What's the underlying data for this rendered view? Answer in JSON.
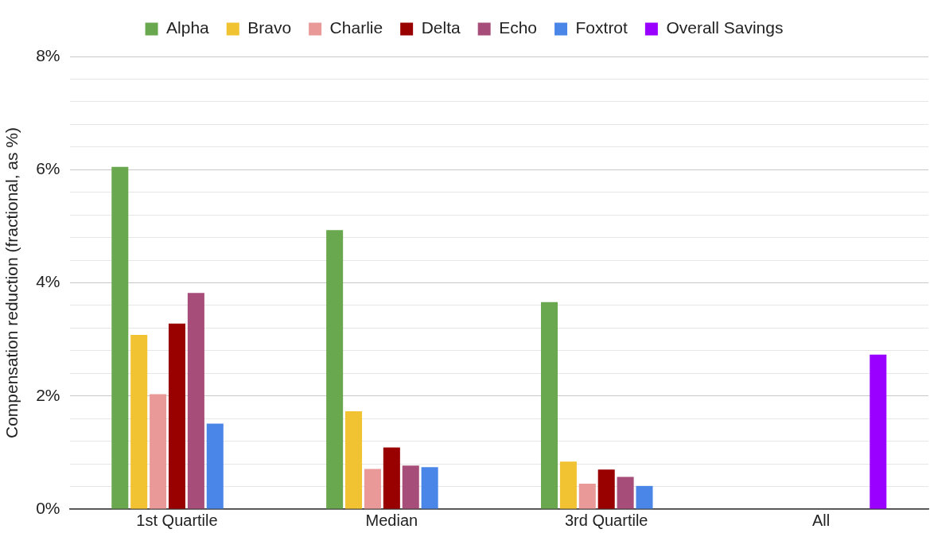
{
  "chart_data": {
    "type": "bar",
    "ylabel": "Compensation reduction (fractional, as %)",
    "categories": [
      "1st Quartile",
      "Median",
      "3rd Quartile",
      "All"
    ],
    "series": [
      {
        "name": "Alpha",
        "color": "#6aa84f",
        "values": [
          6.05,
          4.93,
          3.66,
          null
        ]
      },
      {
        "name": "Bravo",
        "color": "#f1c232",
        "values": [
          3.08,
          1.73,
          0.84,
          null
        ]
      },
      {
        "name": "Charlie",
        "color": "#ea9999",
        "values": [
          2.03,
          0.71,
          0.45,
          null
        ]
      },
      {
        "name": "Delta",
        "color": "#990000",
        "values": [
          3.28,
          1.09,
          0.7,
          null
        ]
      },
      {
        "name": "Echo",
        "color": "#a64d79",
        "values": [
          3.82,
          0.77,
          0.57,
          null
        ]
      },
      {
        "name": "Foxtrot",
        "color": "#4a86e8",
        "values": [
          1.51,
          0.74,
          0.41,
          null
        ]
      },
      {
        "name": "Overall Savings",
        "color": "#9900ff",
        "values": [
          null,
          null,
          null,
          2.73
        ]
      }
    ],
    "ylim": [
      0,
      8
    ],
    "yticks": [
      {
        "value": 0,
        "label": "0%"
      },
      {
        "value": 0.4,
        "label": null
      },
      {
        "value": 0.8,
        "label": null
      },
      {
        "value": 1.2,
        "label": null
      },
      {
        "value": 1.6,
        "label": null
      },
      {
        "value": 2,
        "label": "2%"
      },
      {
        "value": 2.4,
        "label": null
      },
      {
        "value": 2.8,
        "label": null
      },
      {
        "value": 3.2,
        "label": null
      },
      {
        "value": 3.6,
        "label": null
      },
      {
        "value": 4,
        "label": "4%"
      },
      {
        "value": 4.4,
        "label": null
      },
      {
        "value": 4.8,
        "label": null
      },
      {
        "value": 5.2,
        "label": null
      },
      {
        "value": 5.6,
        "label": null
      },
      {
        "value": 6,
        "label": "6%"
      },
      {
        "value": 6.4,
        "label": null
      },
      {
        "value": 6.8,
        "label": null
      },
      {
        "value": 7.2,
        "label": null
      },
      {
        "value": 7.6,
        "label": null
      },
      {
        "value": 8,
        "label": "8%"
      }
    ],
    "grid": "y",
    "legend": "top"
  }
}
